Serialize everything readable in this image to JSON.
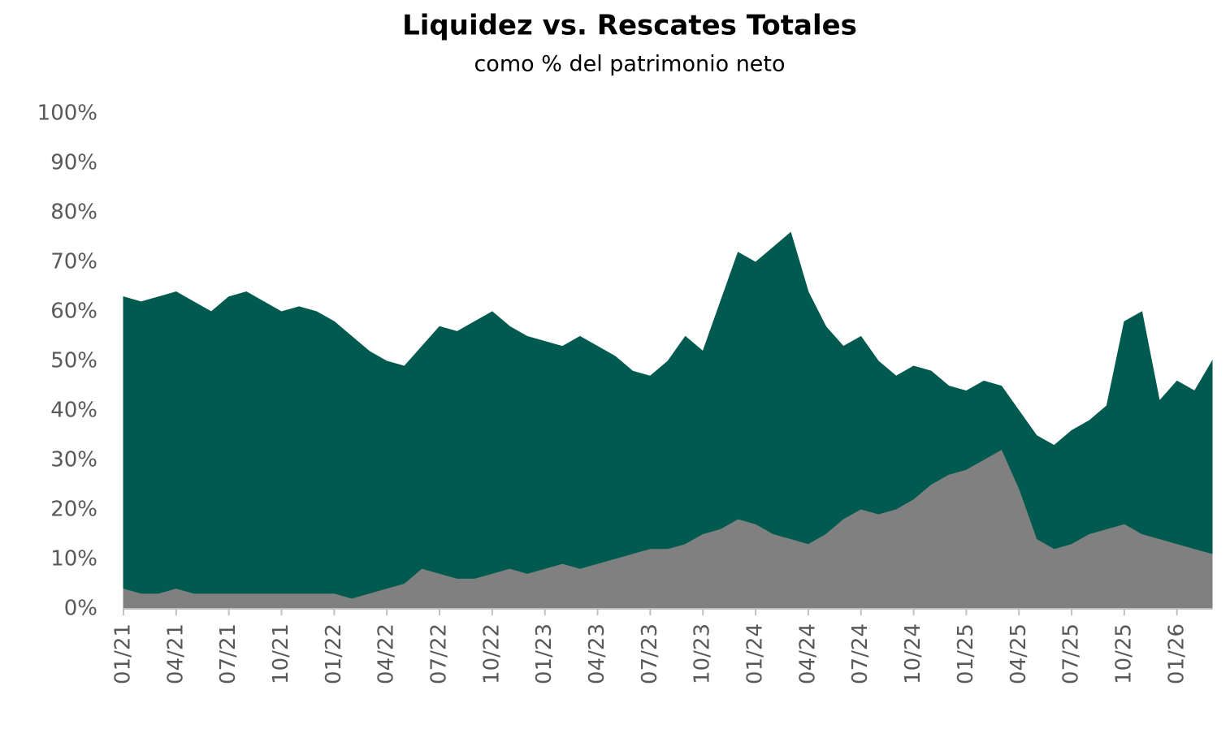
{
  "chart_data": {
    "type": "area",
    "title": "Liquidez vs. Rescates Totales",
    "subtitle": "como % del patrimonio neto",
    "categories": [
      "01/21",
      null,
      null,
      "04/21",
      null,
      null,
      "07/21",
      null,
      null,
      "10/21",
      null,
      null,
      "01/22",
      null,
      null,
      "04/22",
      null,
      null,
      "07/22",
      null,
      null,
      "10/22",
      null,
      null,
      "01/23",
      null,
      null,
      "04/23",
      null,
      null,
      "07/23",
      null,
      null,
      "10/23",
      null,
      null,
      "01/24",
      null,
      null,
      "04/24",
      null,
      null,
      "07/24",
      null,
      null,
      "10/24",
      null,
      null,
      "01/25",
      null,
      null,
      "04/25",
      null,
      null,
      "07/25",
      null,
      null,
      "10/25",
      null,
      null,
      "01/26",
      null,
      null
    ],
    "series": [
      {
        "color": "#005a4f",
        "values": [
          63,
          62,
          63,
          64,
          62,
          60,
          63,
          64,
          62,
          60,
          61,
          60,
          58,
          55,
          52,
          50,
          49,
          53,
          57,
          56,
          58,
          60,
          57,
          55,
          54,
          53,
          55,
          53,
          51,
          48,
          47,
          50,
          55,
          52,
          62,
          72,
          70,
          73,
          76,
          64,
          57,
          53,
          55,
          50,
          47,
          49,
          48,
          45,
          44,
          46,
          45,
          40,
          35,
          33,
          36,
          38,
          41,
          58,
          60,
          42,
          46,
          44,
          50
        ]
      },
      {
        "color": "#808080",
        "values": [
          4,
          3,
          3,
          4,
          3,
          3,
          3,
          3,
          3,
          3,
          3,
          3,
          3,
          2,
          3,
          4,
          5,
          8,
          7,
          6,
          6,
          7,
          8,
          7,
          8,
          9,
          8,
          9,
          10,
          11,
          12,
          12,
          13,
          15,
          16,
          18,
          17,
          15,
          14,
          13,
          15,
          18,
          20,
          19,
          20,
          22,
          25,
          27,
          28,
          30,
          32,
          24,
          14,
          12,
          13,
          15,
          16,
          17,
          15,
          14,
          13,
          12,
          11
        ]
      }
    ],
    "ylim": [
      0,
      100
    ],
    "yticks": [
      {
        "value": 0,
        "label": "0%"
      },
      {
        "value": 10,
        "label": "10%"
      },
      {
        "value": 20,
        "label": "20%"
      },
      {
        "value": 30,
        "label": "30%"
      },
      {
        "value": 40,
        "label": "40%"
      },
      {
        "value": 50,
        "label": "50%"
      },
      {
        "value": 60,
        "label": "60%"
      },
      {
        "value": 70,
        "label": "70%"
      },
      {
        "value": 80,
        "label": "80%"
      },
      {
        "value": 90,
        "label": "90%"
      },
      {
        "value": 100,
        "label": "100%"
      }
    ],
    "grid": false
  }
}
